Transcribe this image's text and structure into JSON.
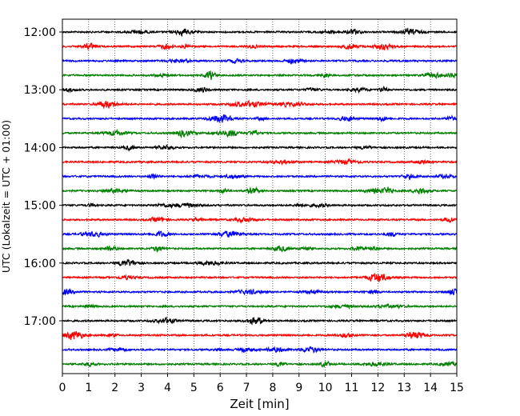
{
  "chart_data": {
    "type": "line",
    "title": "",
    "xlabel": "Zeit  [min]",
    "ylabel": "UTC (Lokalzeit = UTC + 01:00)",
    "xlim": [
      0,
      15
    ],
    "x_ticks": [
      "0",
      "1",
      "2",
      "3",
      "4",
      "5",
      "6",
      "7",
      "8",
      "9",
      "10",
      "11",
      "12",
      "13",
      "14",
      "15"
    ],
    "y_ticks": [
      "12:00",
      "13:00",
      "14:00",
      "15:00",
      "16:00",
      "17:00"
    ],
    "grid": {
      "x": true,
      "style": "dotted"
    },
    "traces_per_hour": 4,
    "trace_minutes": 15,
    "trace_colors": [
      "#000000",
      "#ff0000",
      "#0000ff",
      "#007f00"
    ],
    "trace_start_times": [
      "12:00",
      "12:15",
      "12:30",
      "12:45",
      "13:00",
      "13:15",
      "13:30",
      "13:45",
      "14:00",
      "14:15",
      "14:30",
      "14:45",
      "15:00",
      "15:15",
      "15:30",
      "15:45",
      "16:00",
      "16:15",
      "16:30",
      "16:45",
      "17:00",
      "17:15",
      "17:30",
      "17:45"
    ]
  }
}
